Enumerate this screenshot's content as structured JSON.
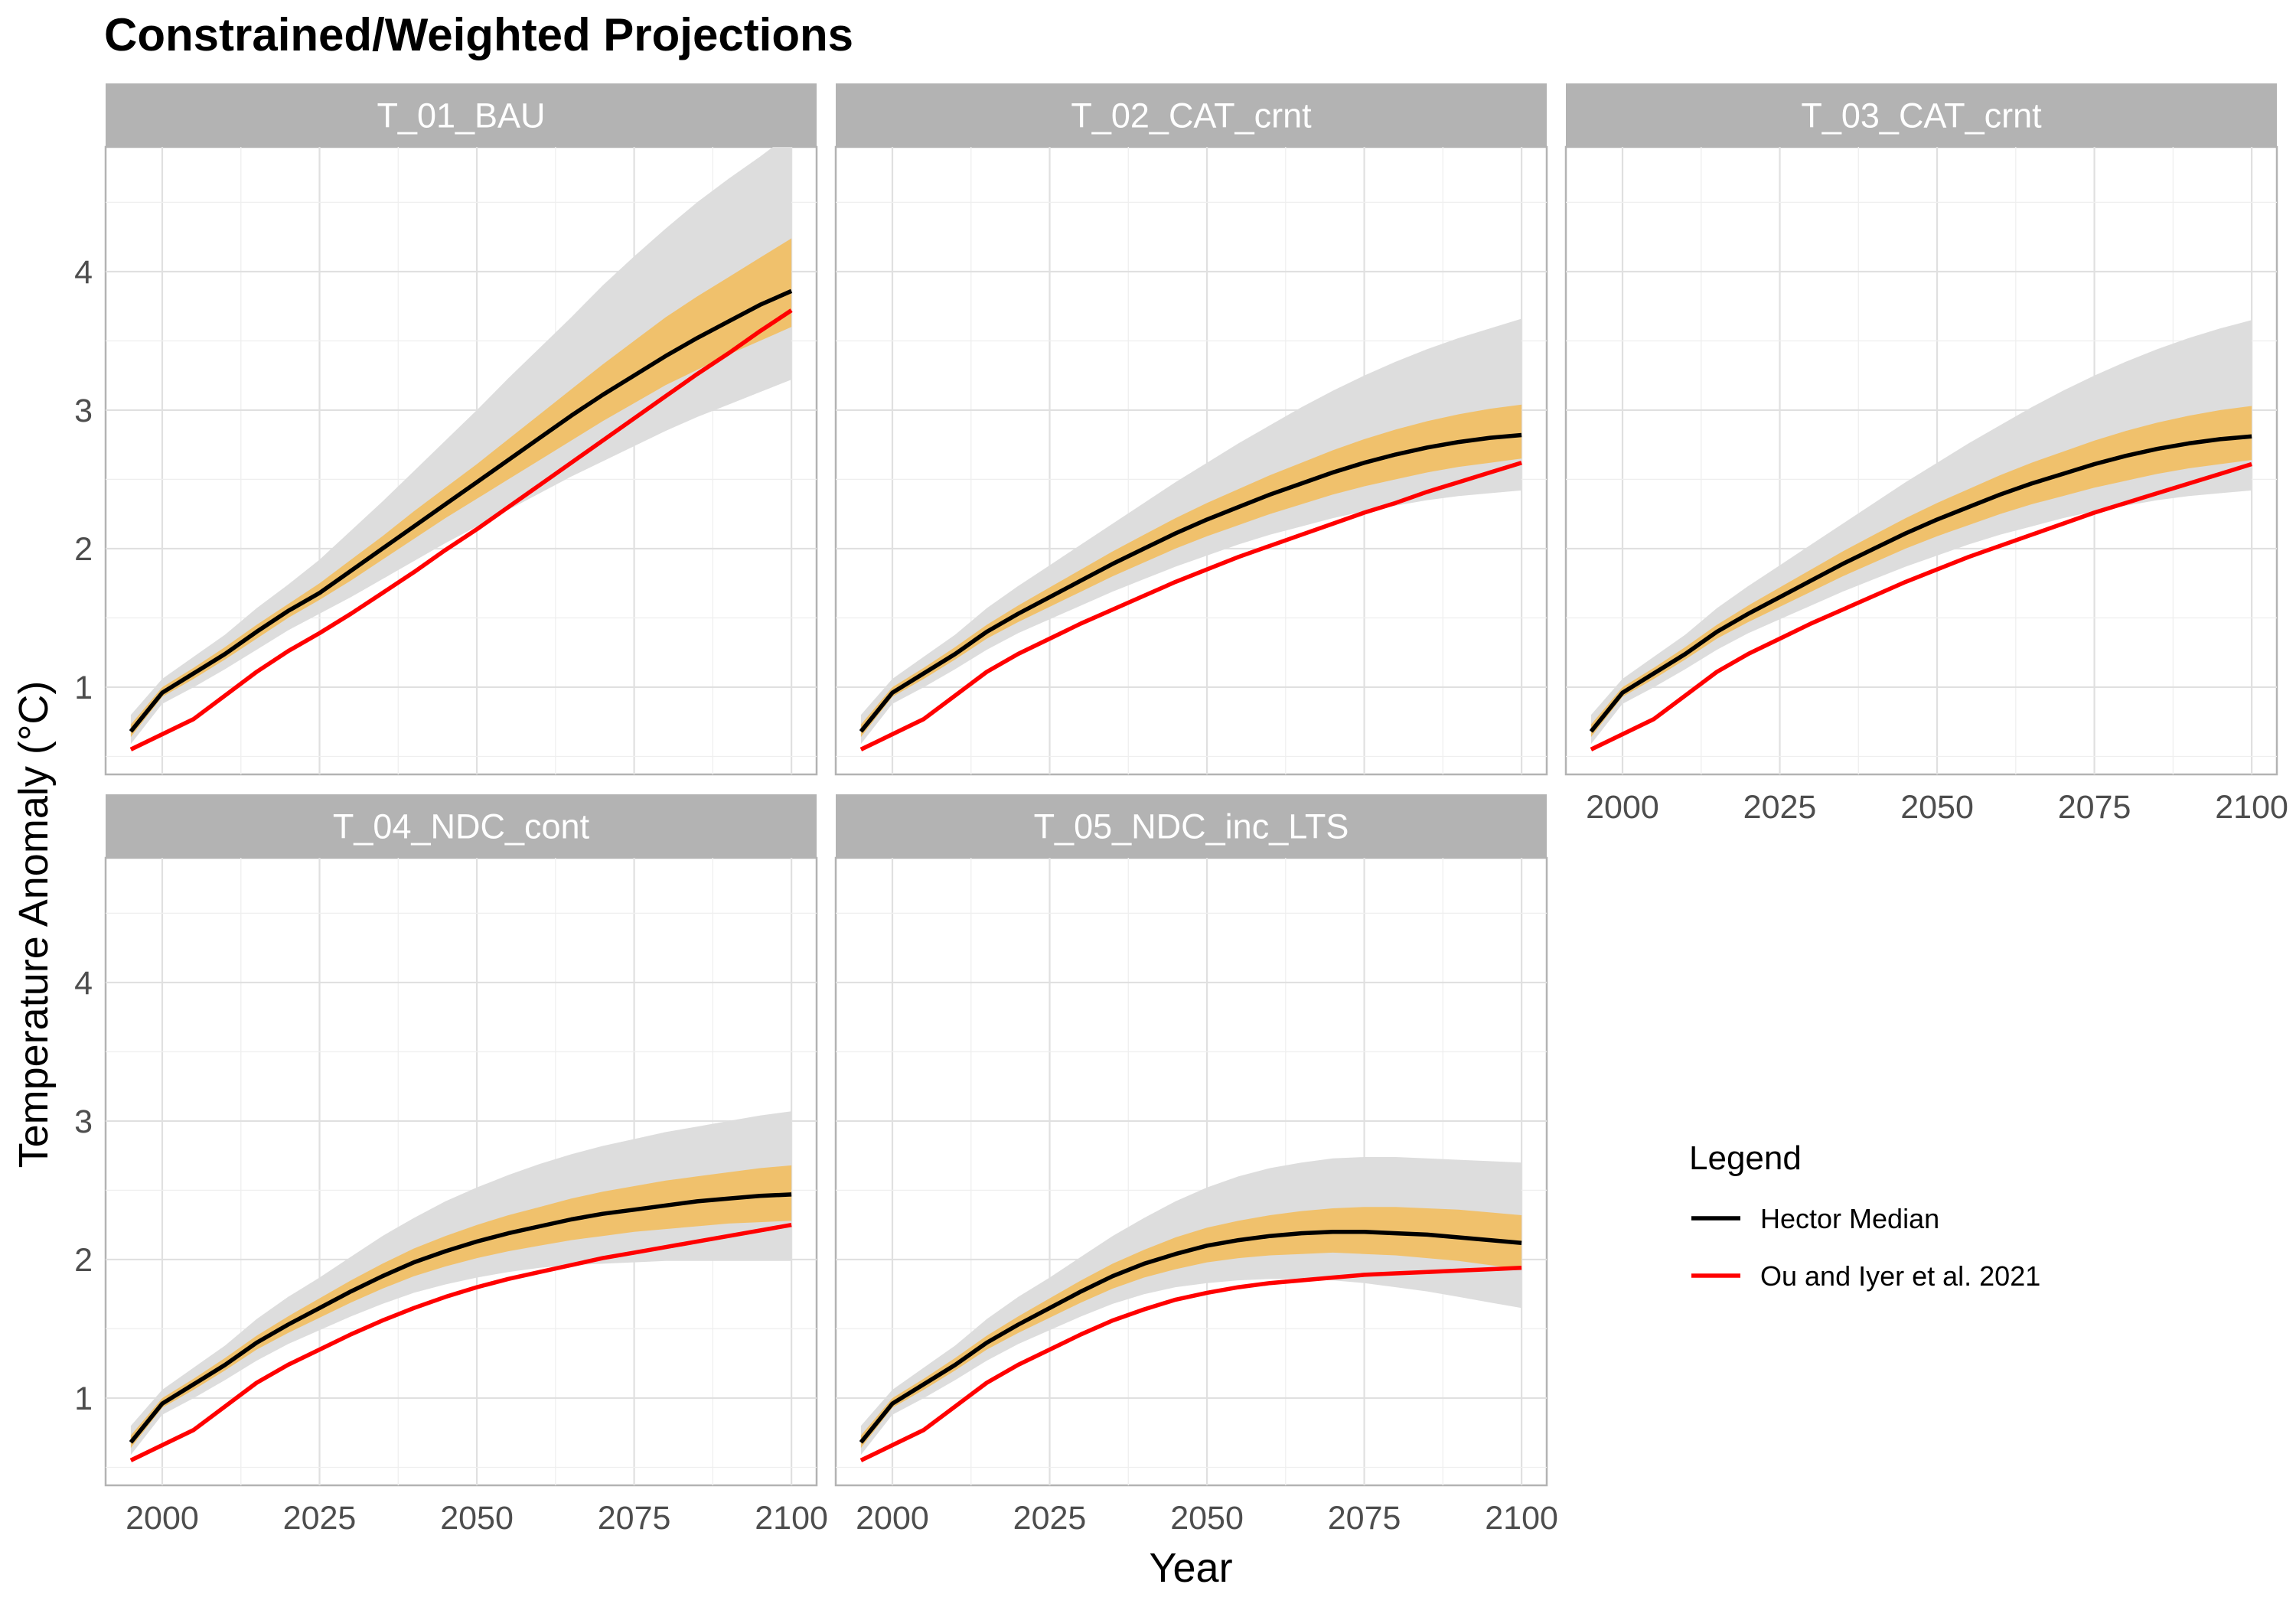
{
  "title": "Constrained/Weighted Projections",
  "chart_data": {
    "type": "line",
    "title": "Constrained/Weighted Projections",
    "xlabel": "Year",
    "ylabel": "Temperature Anomaly (°C)",
    "xlim": [
      1991,
      2104
    ],
    "ylim": [
      0.37,
      4.9
    ],
    "x_ticks": [
      2000,
      2025,
      2050,
      2075,
      2100
    ],
    "y_ticks": [
      1,
      2,
      3,
      4
    ],
    "grid": true,
    "legend": {
      "title": "Legend",
      "position": "right",
      "entries": [
        {
          "label": "Hector Median",
          "color": "#000000"
        },
        {
          "label": "Ou and Iyer et al. 2021",
          "color": "#ff0000"
        }
      ]
    },
    "band_colors": {
      "outer": "#dddddd",
      "inner": "#f0c16c"
    },
    "x": [
      1995,
      2000,
      2005,
      2010,
      2015,
      2020,
      2025,
      2030,
      2035,
      2040,
      2045,
      2050,
      2055,
      2060,
      2065,
      2070,
      2075,
      2080,
      2085,
      2090,
      2095,
      2100
    ],
    "panels": [
      {
        "name": "T_01_BAU",
        "median": [
          0.68,
          0.96,
          1.1,
          1.24,
          1.4,
          1.55,
          1.68,
          1.84,
          2.0,
          2.16,
          2.32,
          2.48,
          2.64,
          2.8,
          2.96,
          3.11,
          3.25,
          3.39,
          3.52,
          3.64,
          3.76,
          3.86
        ],
        "ou_iyer": [
          0.55,
          0.66,
          0.77,
          0.94,
          1.11,
          1.26,
          1.39,
          1.53,
          1.68,
          1.83,
          1.99,
          2.14,
          2.3,
          2.46,
          2.62,
          2.78,
          2.94,
          3.1,
          3.26,
          3.41,
          3.57,
          3.72
        ],
        "inner_low": [
          0.64,
          0.93,
          1.06,
          1.2,
          1.35,
          1.5,
          1.63,
          1.77,
          1.92,
          2.07,
          2.22,
          2.36,
          2.5,
          2.64,
          2.78,
          2.92,
          3.05,
          3.18,
          3.29,
          3.4,
          3.5,
          3.6
        ],
        "inner_high": [
          0.73,
          1.0,
          1.14,
          1.29,
          1.45,
          1.6,
          1.75,
          1.92,
          2.09,
          2.27,
          2.44,
          2.61,
          2.79,
          2.97,
          3.15,
          3.33,
          3.5,
          3.67,
          3.82,
          3.96,
          4.1,
          4.24
        ],
        "outer_low": [
          0.59,
          0.88,
          1.0,
          1.13,
          1.27,
          1.41,
          1.53,
          1.65,
          1.78,
          1.91,
          2.04,
          2.16,
          2.28,
          2.4,
          2.52,
          2.63,
          2.74,
          2.85,
          2.95,
          3.04,
          3.13,
          3.22
        ],
        "outer_high": [
          0.8,
          1.06,
          1.22,
          1.38,
          1.57,
          1.74,
          1.92,
          2.13,
          2.34,
          2.56,
          2.78,
          3.0,
          3.23,
          3.45,
          3.67,
          3.9,
          4.11,
          4.31,
          4.5,
          4.67,
          4.83,
          5.0
        ]
      },
      {
        "name": "T_02_CAT_crnt",
        "median": [
          0.68,
          0.96,
          1.1,
          1.24,
          1.4,
          1.53,
          1.65,
          1.77,
          1.89,
          2.0,
          2.11,
          2.21,
          2.3,
          2.39,
          2.47,
          2.55,
          2.62,
          2.68,
          2.73,
          2.77,
          2.8,
          2.82
        ],
        "ou_iyer": [
          0.55,
          0.66,
          0.77,
          0.94,
          1.11,
          1.24,
          1.35,
          1.46,
          1.56,
          1.66,
          1.76,
          1.85,
          1.94,
          2.02,
          2.1,
          2.18,
          2.26,
          2.33,
          2.41,
          2.48,
          2.55,
          2.62
        ],
        "inner_low": [
          0.64,
          0.93,
          1.06,
          1.2,
          1.35,
          1.47,
          1.58,
          1.69,
          1.8,
          1.9,
          2.0,
          2.09,
          2.17,
          2.25,
          2.32,
          2.39,
          2.45,
          2.5,
          2.55,
          2.59,
          2.62,
          2.65
        ],
        "inner_high": [
          0.73,
          1.0,
          1.14,
          1.29,
          1.45,
          1.59,
          1.72,
          1.85,
          1.98,
          2.1,
          2.22,
          2.33,
          2.43,
          2.53,
          2.62,
          2.71,
          2.79,
          2.86,
          2.92,
          2.97,
          3.01,
          3.04
        ],
        "outer_low": [
          0.59,
          0.88,
          1.0,
          1.13,
          1.27,
          1.39,
          1.49,
          1.59,
          1.69,
          1.78,
          1.87,
          1.95,
          2.03,
          2.1,
          2.16,
          2.22,
          2.27,
          2.31,
          2.35,
          2.38,
          2.4,
          2.42
        ],
        "outer_high": [
          0.8,
          1.06,
          1.22,
          1.38,
          1.57,
          1.73,
          1.88,
          2.03,
          2.18,
          2.33,
          2.48,
          2.62,
          2.76,
          2.89,
          3.02,
          3.14,
          3.25,
          3.35,
          3.44,
          3.52,
          3.59,
          3.66
        ]
      },
      {
        "name": "T_03_CAT_crnt",
        "median": [
          0.68,
          0.96,
          1.1,
          1.24,
          1.4,
          1.53,
          1.65,
          1.77,
          1.89,
          2.0,
          2.11,
          2.21,
          2.3,
          2.39,
          2.47,
          2.54,
          2.61,
          2.67,
          2.72,
          2.76,
          2.79,
          2.81
        ],
        "ou_iyer": [
          0.55,
          0.66,
          0.77,
          0.94,
          1.11,
          1.24,
          1.35,
          1.46,
          1.56,
          1.66,
          1.76,
          1.85,
          1.94,
          2.02,
          2.1,
          2.18,
          2.26,
          2.33,
          2.4,
          2.47,
          2.54,
          2.61
        ],
        "inner_low": [
          0.64,
          0.93,
          1.06,
          1.2,
          1.35,
          1.47,
          1.58,
          1.69,
          1.8,
          1.9,
          2.0,
          2.09,
          2.17,
          2.25,
          2.32,
          2.38,
          2.44,
          2.49,
          2.54,
          2.58,
          2.61,
          2.64
        ],
        "inner_high": [
          0.73,
          1.0,
          1.14,
          1.29,
          1.45,
          1.59,
          1.72,
          1.85,
          1.98,
          2.1,
          2.22,
          2.33,
          2.43,
          2.53,
          2.62,
          2.7,
          2.78,
          2.85,
          2.91,
          2.96,
          3.0,
          3.03
        ],
        "outer_low": [
          0.59,
          0.88,
          1.0,
          1.13,
          1.27,
          1.39,
          1.49,
          1.59,
          1.69,
          1.78,
          1.87,
          1.95,
          2.03,
          2.1,
          2.16,
          2.22,
          2.27,
          2.31,
          2.35,
          2.38,
          2.4,
          2.42
        ],
        "outer_high": [
          0.8,
          1.06,
          1.22,
          1.38,
          1.57,
          1.73,
          1.88,
          2.03,
          2.18,
          2.33,
          2.48,
          2.62,
          2.76,
          2.89,
          3.02,
          3.14,
          3.25,
          3.35,
          3.44,
          3.52,
          3.59,
          3.65
        ]
      },
      {
        "name": "T_04_NDC_cont",
        "median": [
          0.68,
          0.96,
          1.1,
          1.24,
          1.4,
          1.53,
          1.65,
          1.77,
          1.88,
          1.98,
          2.06,
          2.13,
          2.19,
          2.24,
          2.29,
          2.33,
          2.36,
          2.39,
          2.42,
          2.44,
          2.46,
          2.47
        ],
        "ou_iyer": [
          0.55,
          0.66,
          0.77,
          0.94,
          1.11,
          1.24,
          1.35,
          1.46,
          1.56,
          1.65,
          1.73,
          1.8,
          1.86,
          1.91,
          1.96,
          2.01,
          2.05,
          2.09,
          2.13,
          2.17,
          2.21,
          2.25
        ],
        "inner_low": [
          0.64,
          0.93,
          1.06,
          1.2,
          1.35,
          1.47,
          1.58,
          1.69,
          1.79,
          1.88,
          1.95,
          2.01,
          2.06,
          2.1,
          2.14,
          2.17,
          2.2,
          2.22,
          2.24,
          2.26,
          2.27,
          2.28
        ],
        "inner_high": [
          0.73,
          1.0,
          1.14,
          1.29,
          1.45,
          1.59,
          1.72,
          1.85,
          1.97,
          2.08,
          2.17,
          2.25,
          2.32,
          2.38,
          2.44,
          2.49,
          2.53,
          2.57,
          2.6,
          2.63,
          2.66,
          2.68
        ],
        "outer_low": [
          0.59,
          0.88,
          1.0,
          1.13,
          1.27,
          1.39,
          1.49,
          1.59,
          1.68,
          1.76,
          1.82,
          1.87,
          1.91,
          1.94,
          1.96,
          1.97,
          1.98,
          1.99,
          1.99,
          1.99,
          1.99,
          1.99
        ],
        "outer_high": [
          0.8,
          1.06,
          1.22,
          1.38,
          1.57,
          1.73,
          1.87,
          2.02,
          2.17,
          2.3,
          2.42,
          2.52,
          2.61,
          2.69,
          2.76,
          2.82,
          2.87,
          2.92,
          2.96,
          3.0,
          3.04,
          3.07
        ]
      },
      {
        "name": "T_05_NDC_inc_LTS",
        "median": [
          0.68,
          0.96,
          1.1,
          1.24,
          1.4,
          1.53,
          1.65,
          1.77,
          1.88,
          1.97,
          2.04,
          2.1,
          2.14,
          2.17,
          2.19,
          2.2,
          2.2,
          2.19,
          2.18,
          2.16,
          2.14,
          2.12
        ],
        "ou_iyer": [
          0.55,
          0.66,
          0.77,
          0.94,
          1.11,
          1.24,
          1.35,
          1.46,
          1.56,
          1.64,
          1.71,
          1.76,
          1.8,
          1.83,
          1.85,
          1.87,
          1.89,
          1.9,
          1.91,
          1.92,
          1.93,
          1.94
        ],
        "inner_low": [
          0.64,
          0.93,
          1.06,
          1.2,
          1.35,
          1.47,
          1.58,
          1.69,
          1.79,
          1.87,
          1.93,
          1.98,
          2.01,
          2.03,
          2.04,
          2.05,
          2.04,
          2.03,
          2.01,
          1.99,
          1.96,
          1.93
        ],
        "inner_high": [
          0.73,
          1.0,
          1.14,
          1.29,
          1.45,
          1.59,
          1.72,
          1.85,
          1.97,
          2.07,
          2.16,
          2.23,
          2.28,
          2.32,
          2.35,
          2.37,
          2.38,
          2.38,
          2.37,
          2.36,
          2.34,
          2.32
        ],
        "outer_low": [
          0.59,
          0.88,
          1.0,
          1.13,
          1.27,
          1.39,
          1.49,
          1.59,
          1.68,
          1.75,
          1.8,
          1.83,
          1.85,
          1.86,
          1.86,
          1.85,
          1.83,
          1.8,
          1.77,
          1.73,
          1.69,
          1.65
        ],
        "outer_high": [
          0.8,
          1.06,
          1.22,
          1.38,
          1.57,
          1.73,
          1.87,
          2.02,
          2.17,
          2.3,
          2.42,
          2.52,
          2.6,
          2.66,
          2.7,
          2.73,
          2.74,
          2.74,
          2.73,
          2.72,
          2.71,
          2.7
        ]
      }
    ]
  }
}
